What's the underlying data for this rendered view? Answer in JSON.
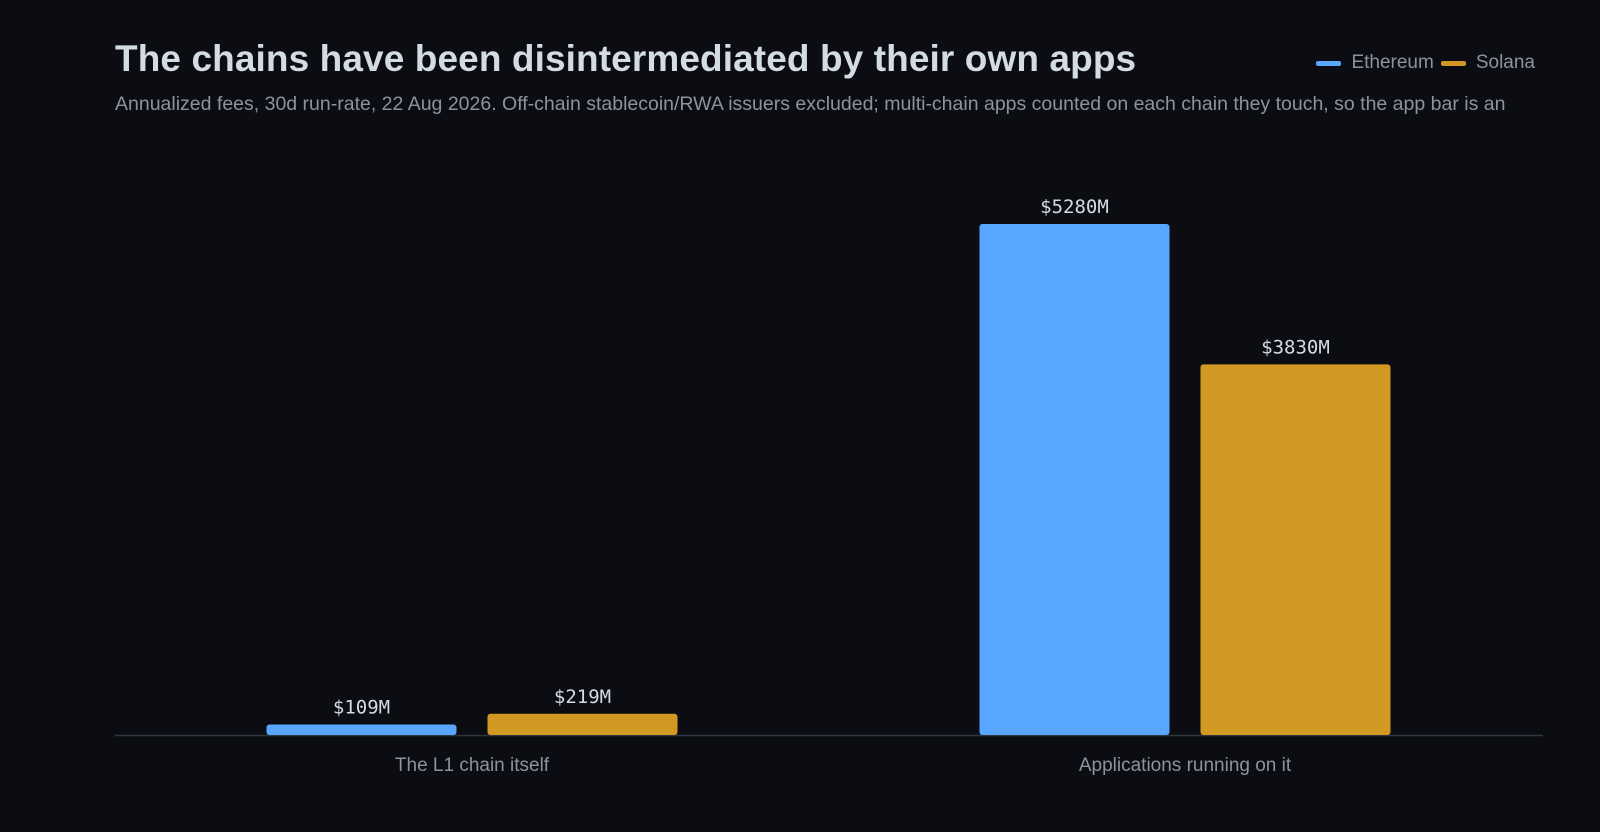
{
  "chart_data": {
    "type": "bar",
    "title": "The chains have been disintermediated by their own apps",
    "subtitle": "Annualized fees, 30d run-rate, 22 Aug 2026. Off-chain stablecoin/RWA issuers excluded; multi-chain apps counted on each chain they touch, so the app bar is an",
    "categories": [
      "The L1 chain itself",
      "Applications running on it"
    ],
    "series": [
      {
        "name": "Ethereum",
        "color": "#58a6ff",
        "values": [
          109,
          5280
        ],
        "labels": [
          "$109M",
          "$5280M"
        ]
      },
      {
        "name": "Solana",
        "color": "#d29922",
        "values": [
          219,
          3830
        ],
        "labels": [
          "$219M",
          "$3830M"
        ]
      }
    ],
    "unit": "$M",
    "ylim": [
      0,
      5280
    ],
    "grid": false,
    "legend": "top-right"
  },
  "colors": {
    "background": "#0b0d12",
    "baseline": "#30363d"
  }
}
